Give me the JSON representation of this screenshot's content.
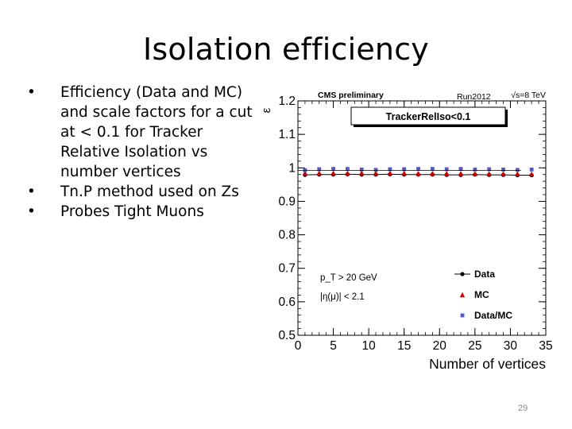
{
  "slide": {
    "title": "Isolation efficiency",
    "bullets": [
      "Efficiency (Data and MC) and scale factors for a cut at < 0.1 for Tracker Relative Isolation vs number vertices",
      "Tn.P method used on Zs",
      "Probes Tight Muons"
    ],
    "bullet_glyph": "•",
    "page_number": "29"
  },
  "chart_data": {
    "type": "scatter",
    "title_left": "CMS preliminary",
    "title_mid": "Run2012",
    "title_right": "√s=8 TeV",
    "label_box": "TrackerRelIso<0.1",
    "xlabel": "Number of vertices",
    "ylabel": "ε",
    "xlim": [
      0,
      35
    ],
    "ylim": [
      0.5,
      1.2
    ],
    "xticks": [
      "0",
      "5",
      "10",
      "15",
      "20",
      "25",
      "30",
      "35"
    ],
    "yticks": [
      "0.5",
      "0.6",
      "0.7",
      "0.8",
      "0.9",
      "1",
      "1.1",
      "1.2"
    ],
    "annotations": [
      "p_T > 20 GeV",
      "|η(μ)| < 2.1"
    ],
    "legend_position": "bottom-right",
    "series": [
      {
        "name": "Data",
        "color": "#000000",
        "marker": "circle",
        "x": [
          1,
          3,
          5,
          7,
          9,
          11,
          13,
          15,
          17,
          19,
          21,
          23,
          25,
          27,
          29,
          31,
          33
        ],
        "y": [
          0.979,
          0.98,
          0.98,
          0.981,
          0.98,
          0.98,
          0.981,
          0.98,
          0.98,
          0.98,
          0.979,
          0.979,
          0.98,
          0.979,
          0.979,
          0.978,
          0.978
        ]
      },
      {
        "name": "MC",
        "color": "#cc0000",
        "marker": "triangle",
        "x": [
          1,
          3,
          5,
          7,
          9,
          11,
          13,
          15,
          17,
          19,
          21,
          23,
          25,
          27,
          29,
          31,
          33
        ],
        "y": [
          0.985,
          0.985,
          0.985,
          0.985,
          0.985,
          0.985,
          0.985,
          0.985,
          0.984,
          0.984,
          0.984,
          0.984,
          0.983,
          0.983,
          0.983,
          0.983,
          0.982
        ]
      },
      {
        "name": "Data/MC",
        "color": "#5555cc",
        "marker": "square",
        "x": [
          1,
          3,
          5,
          7,
          9,
          11,
          13,
          15,
          17,
          19,
          21,
          23,
          25,
          27,
          29,
          31,
          33
        ],
        "y": [
          0.993,
          0.996,
          0.997,
          0.997,
          0.995,
          0.994,
          0.996,
          0.996,
          0.997,
          0.997,
          0.996,
          0.997,
          0.995,
          0.996,
          0.995,
          0.994,
          0.995
        ]
      }
    ]
  }
}
